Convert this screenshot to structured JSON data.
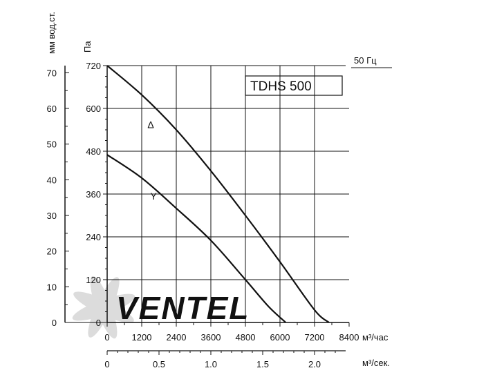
{
  "chart_data": {
    "type": "line",
    "title": "TDHS 500",
    "frequency_label": "50 Гц",
    "left_axis_unit": "мм вод.ст.",
    "left_axis_ticks": [
      0,
      10,
      20,
      30,
      40,
      50,
      60,
      70
    ],
    "ylabel": "Па",
    "ylim": [
      0,
      720
    ],
    "y_ticks": [
      0,
      120,
      240,
      360,
      480,
      600,
      720
    ],
    "xlabel": "м³/час",
    "xlim": [
      0,
      8400
    ],
    "x_ticks": [
      0,
      1200,
      2400,
      3600,
      4800,
      6000,
      7200,
      8400
    ],
    "x2label": "м³/сек.",
    "x2_ticks": [
      0,
      0.5,
      1.0,
      1.5,
      2.0
    ],
    "x2_tick_labels": [
      "0",
      "0.5",
      "1.0",
      "1.5",
      "2.0"
    ],
    "grid": true,
    "series": [
      {
        "name": "Δ",
        "x": [
          0,
          1200,
          2400,
          3600,
          4800,
          6000,
          7200,
          7700
        ],
        "values": [
          720,
          638,
          540,
          425,
          300,
          170,
          35,
          0
        ]
      },
      {
        "name": "Y",
        "x": [
          0,
          1200,
          2400,
          3600,
          4800,
          5600,
          6200
        ],
        "values": [
          470,
          405,
          320,
          230,
          120,
          45,
          0
        ]
      }
    ],
    "colors": {
      "line": "#111111",
      "grid": "#111111",
      "watermark": "#d6d6d6"
    }
  },
  "watermark": {
    "text": "VENTEL"
  }
}
